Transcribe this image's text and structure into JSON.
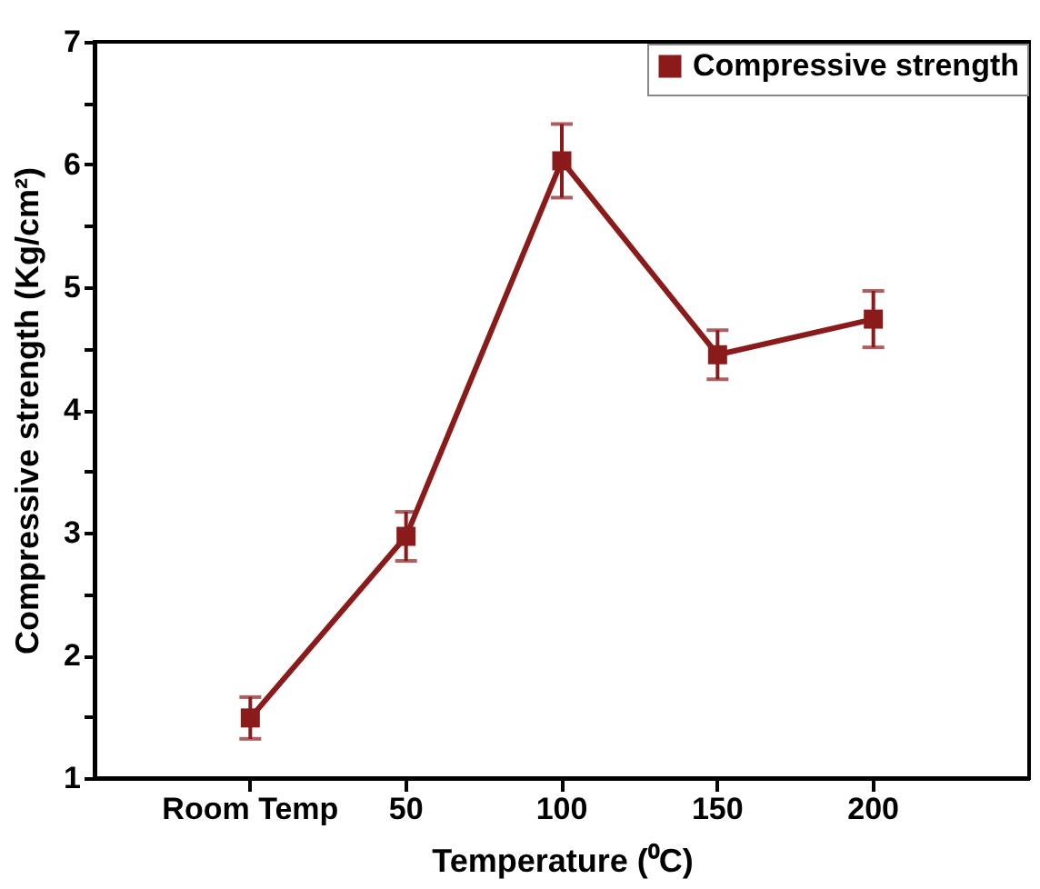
{
  "chart_data": {
    "type": "line",
    "xlabel": "Temperature (⁰C)",
    "ylabel": "Compressive strength (Kg/cm²)",
    "categories": [
      "Room Temp",
      "50",
      "100",
      "150",
      "200"
    ],
    "series": [
      {
        "name": "Compressive strength",
        "color": "#8b1a1a",
        "values": [
          1.49,
          2.97,
          6.03,
          4.45,
          4.74
        ],
        "errors": [
          0.17,
          0.2,
          0.3,
          0.2,
          0.23
        ]
      }
    ],
    "ylim": [
      1,
      7
    ],
    "yticks": [
      1,
      {
        "value": 1.5,
        "label": null
      },
      2,
      {
        "value": 2.5,
        "label": null
      },
      3,
      {
        "value": 3.5,
        "label": null
      },
      4,
      {
        "value": 4.5,
        "label": null
      },
      5,
      {
        "value": 5.5,
        "label": null
      },
      6,
      {
        "value": 6.5,
        "label": null
      },
      7
    ],
    "grid": false,
    "legend": "top right",
    "marker": "square",
    "line_style": "solid"
  }
}
